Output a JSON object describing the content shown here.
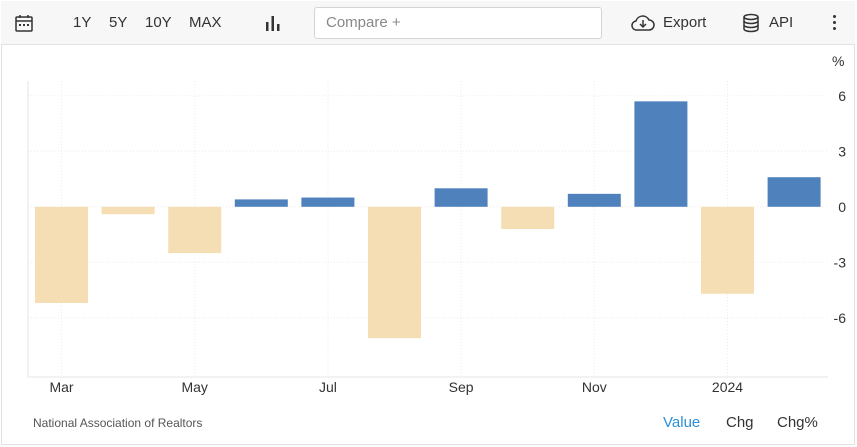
{
  "toolbar": {
    "ranges": [
      "1Y",
      "5Y",
      "10Y",
      "MAX"
    ],
    "compare_placeholder": "Compare +",
    "export_label": "Export",
    "api_label": "API"
  },
  "chart_data": {
    "type": "bar",
    "title": "",
    "unit": "%",
    "x": [
      "2023-03",
      "2023-04",
      "2023-05",
      "2023-06",
      "2023-07",
      "2023-08",
      "2023-09",
      "2023-10",
      "2023-11",
      "2023-12",
      "2024-01",
      "2024-02"
    ],
    "values": [
      -5.2,
      -0.4,
      -2.5,
      0.4,
      0.5,
      -7.1,
      1.0,
      -1.2,
      0.7,
      5.7,
      -4.7,
      1.6
    ],
    "x_tick_labels": [
      "Mar",
      "May",
      "Jul",
      "Sep",
      "Nov",
      "2024"
    ],
    "y_ticks": [
      6,
      3,
      0,
      -3,
      -6
    ],
    "ylim": [
      -9.2,
      6.8
    ],
    "y_axis_side": "right",
    "grid": true,
    "colors": {
      "positive": "#4f81bd",
      "negative": "#f5deb3"
    }
  },
  "footer": {
    "source": "National Association of Realtors",
    "views": [
      "Value",
      "Chg",
      "Chg%"
    ],
    "active_view": "Value"
  }
}
